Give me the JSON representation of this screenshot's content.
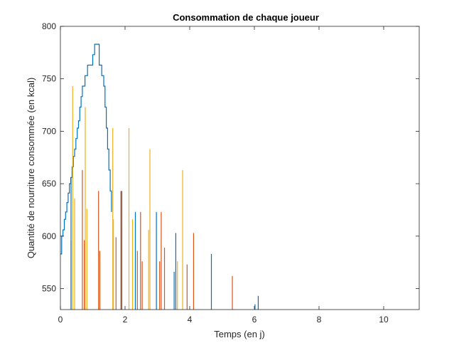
{
  "chart_data": {
    "type": "line",
    "title": "Consommation de chaque joueur",
    "xlabel": "Temps (en j)",
    "ylabel": "Quantité de nourriture consommée (en kcal)",
    "xlim": [
      0,
      11.1
    ],
    "ylim": [
      530,
      800
    ],
    "xticks": [
      0,
      2,
      4,
      6,
      8,
      10
    ],
    "xtick_labels": [
      "0",
      "2",
      "4",
      "6",
      "8",
      "10"
    ],
    "yticks": [
      550,
      600,
      650,
      700,
      750,
      800
    ],
    "ytick_labels": [
      "550",
      "600",
      "650",
      "700",
      "750",
      "800"
    ],
    "grid": false,
    "colors": {
      "blue": "#0072BD",
      "orange": "#D95319",
      "yellow": "#EDB120",
      "dark": "#444444"
    },
    "series": [
      {
        "style": "stairs",
        "color": "blue",
        "x": [
          0.0,
          0.04,
          0.08,
          0.12,
          0.16,
          0.2,
          0.24,
          0.28,
          0.32,
          0.36,
          0.4,
          0.44,
          0.48,
          0.52,
          0.56,
          0.6,
          0.64,
          0.68,
          0.72,
          0.76,
          0.84,
          0.92,
          1.0,
          1.06,
          1.2,
          1.28,
          1.34,
          1.38,
          1.42,
          1.46,
          1.5,
          1.54,
          1.58
        ],
        "y": [
          583,
          600,
          606,
          616,
          623,
          632,
          641,
          650,
          656,
          666,
          676,
          683,
          693,
          703,
          710,
          723,
          733,
          743,
          743,
          753,
          763,
          763,
          773,
          783,
          763,
          753,
          743,
          723,
          703,
          683,
          663,
          643,
          623
        ]
      },
      {
        "style": "spikes",
        "color": "yellow",
        "x": [
          0.38,
          0.44,
          0.77,
          0.82,
          1.62,
          2.12,
          2.77,
          3.78
        ],
        "y": [
          743,
          636,
          723,
          626,
          703,
          703,
          683,
          663
        ]
      },
      {
        "style": "spikes",
        "color": "orange",
        "x": [
          0.33,
          0.68,
          0.74,
          1.18,
          1.22,
          1.87,
          2.38,
          2.48,
          3.07,
          3.12,
          4.12,
          5.32
        ],
        "y": [
          596,
          663,
          596,
          643,
          586,
          643,
          586,
          623,
          576,
          623,
          603,
          562
        ]
      },
      {
        "style": "spikes",
        "color": "blue",
        "x": [
          0.33,
          1.9,
          2.32,
          2.97,
          3.52,
          3.57,
          4.67,
          6.02,
          6.12
        ],
        "y": [
          656,
          643,
          623,
          623,
          566,
          603,
          583,
          535,
          543
        ]
      },
      {
        "style": "spikes",
        "color": "yellow",
        "x": [
          1.64,
          2.23,
          2.73,
          3.62
        ],
        "y": [
          616,
          616,
          606,
          576
        ]
      },
      {
        "style": "spikes",
        "color": "orange",
        "x": [
          1.72,
          2.53,
          3.22,
          3.92
        ],
        "y": [
          599,
          576,
          589,
          573
        ]
      }
    ]
  }
}
